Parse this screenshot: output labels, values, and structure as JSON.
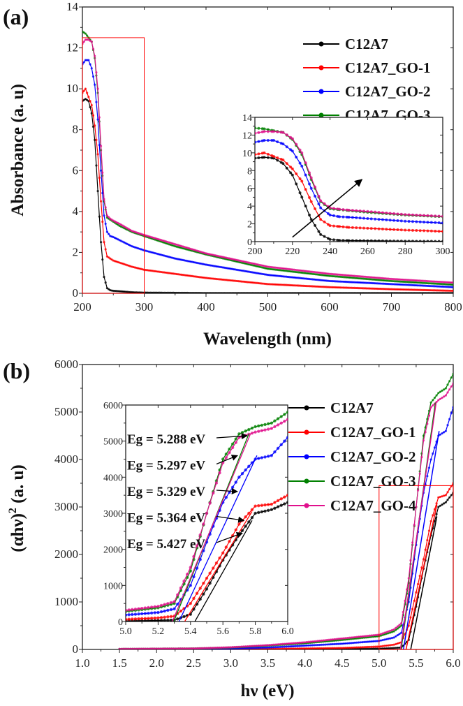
{
  "chart_data": [
    {
      "type": "line",
      "panel_label": "(a)",
      "title": "",
      "xlabel": "Wavelength (nm)",
      "ylabel": "Absorbance (a. u)",
      "xlim": [
        200,
        800
      ],
      "ylim": [
        0,
        14
      ],
      "xticks": [
        "200",
        "300",
        "400",
        "500",
        "600",
        "700",
        "800"
      ],
      "yticks": [
        "0",
        "2",
        "4",
        "6",
        "8",
        "10",
        "12",
        "14"
      ],
      "legend_position": "top-right",
      "x": [
        200,
        205,
        210,
        215,
        220,
        225,
        230,
        235,
        240,
        245,
        250,
        260,
        280,
        300,
        350,
        400,
        500,
        600,
        700,
        800
      ],
      "series": [
        {
          "name": "C12A7",
          "color": "#000000",
          "values": [
            9.4,
            9.5,
            9.4,
            8.8,
            7.5,
            5.0,
            2.5,
            0.8,
            0.25,
            0.15,
            0.12,
            0.1,
            0.05,
            0.03,
            0.02,
            0.01,
            0.01,
            0.01,
            0.01,
            0.01
          ]
        },
        {
          "name": "C12A7_GO-1",
          "color": "#ff0000",
          "values": [
            9.8,
            10.0,
            9.6,
            9.2,
            8.2,
            6.8,
            4.5,
            2.5,
            1.8,
            1.7,
            1.6,
            1.5,
            1.3,
            1.15,
            0.95,
            0.75,
            0.45,
            0.3,
            0.2,
            0.12
          ]
        },
        {
          "name": "C12A7_GO-2",
          "color": "#0000ff",
          "values": [
            11.2,
            11.4,
            11.4,
            11.0,
            10.2,
            8.5,
            6.0,
            3.8,
            3.0,
            2.8,
            2.75,
            2.6,
            2.3,
            2.1,
            1.7,
            1.4,
            0.9,
            0.6,
            0.45,
            0.3
          ]
        },
        {
          "name": "C12A7_GO-3",
          "color": "#008000",
          "values": [
            12.8,
            12.7,
            12.5,
            12.3,
            11.5,
            9.8,
            7.0,
            4.5,
            3.7,
            3.6,
            3.5,
            3.3,
            3.0,
            2.8,
            2.3,
            1.9,
            1.2,
            0.85,
            0.6,
            0.42
          ]
        },
        {
          "name": "C12A7_GO-4",
          "color": "#e0108c",
          "values": [
            12.2,
            12.4,
            12.4,
            12.3,
            11.6,
            10.0,
            7.2,
            4.6,
            3.8,
            3.65,
            3.55,
            3.4,
            3.05,
            2.85,
            2.4,
            1.95,
            1.3,
            0.95,
            0.7,
            0.52
          ]
        }
      ],
      "zoom_box": {
        "xrange": [
          200,
          300
        ],
        "yrange": [
          0,
          12.5
        ],
        "color": "#ff0000"
      },
      "inset": {
        "xlim": [
          200,
          300
        ],
        "ylim": [
          0,
          14
        ],
        "xticks": [
          "200",
          "220",
          "240",
          "260",
          "280",
          "300"
        ],
        "yticks": [
          "0",
          "2",
          "4",
          "6",
          "8",
          "10",
          "12",
          "14"
        ],
        "arrow": {
          "from": [
            220,
            0.5
          ],
          "to": [
            257,
            7
          ]
        }
      }
    },
    {
      "type": "line",
      "panel_label": "(b)",
      "title": "",
      "xlabel": "hν (eV)",
      "ylabel": "(αhν)² (a. u)",
      "ylabel_main": "(αhν)",
      "ylabel_sup": "2",
      "ylabel_tail": " (a. u)",
      "xlim": [
        1.0,
        6.0
      ],
      "ylim": [
        0,
        6000
      ],
      "xticks": [
        "1.0",
        "1.5",
        "2.0",
        "2.5",
        "3.0",
        "3.5",
        "4.0",
        "4.5",
        "5.0",
        "5.5",
        "6.0"
      ],
      "yticks": [
        "0",
        "1000",
        "2000",
        "3000",
        "4000",
        "5000",
        "6000"
      ],
      "legend_position": "top-right",
      "x": [
        1.5,
        2.5,
        3.0,
        3.5,
        4.0,
        4.5,
        5.0,
        5.2,
        5.3,
        5.4,
        5.5,
        5.6,
        5.7,
        5.8,
        5.9,
        6.0
      ],
      "series": [
        {
          "name": "C12A7",
          "color": "#000000",
          "values": [
            0,
            0,
            0,
            0,
            5,
            10,
            15,
            30,
            40,
            200,
            900,
            1700,
            2400,
            3000,
            3100,
            3300
          ],
          "eg": 5.427,
          "tangent_end": [
            5.78,
            2800
          ]
        },
        {
          "name": "C12A7_GO-1",
          "color": "#ff0000",
          "values": [
            0,
            2,
            5,
            10,
            20,
            30,
            60,
            100,
            150,
            500,
            1200,
            1900,
            2700,
            3200,
            3250,
            3500
          ],
          "eg": 5.364,
          "tangent_end": [
            5.78,
            3050
          ]
        },
        {
          "name": "C12A7_GO-2",
          "color": "#0000ff",
          "values": [
            5,
            10,
            20,
            40,
            80,
            120,
            180,
            250,
            350,
            1000,
            2200,
            3300,
            4000,
            4500,
            4600,
            5100
          ],
          "eg": 5.329,
          "tangent_end": [
            5.81,
            4600
          ]
        },
        {
          "name": "C12A7_GO-3",
          "color": "#008000",
          "values": [
            10,
            20,
            40,
            80,
            130,
            200,
            280,
            380,
            500,
            1400,
            3000,
            4500,
            5200,
            5400,
            5500,
            5800
          ],
          "eg": 5.297,
          "tangent_end": [
            5.76,
            5200
          ]
        },
        {
          "name": "C12A7_GO-4",
          "color": "#e0108c",
          "values": [
            10,
            20,
            45,
            90,
            150,
            230,
            310,
            420,
            550,
            1500,
            3000,
            4400,
            5100,
            5250,
            5350,
            5600
          ],
          "eg": 5.288,
          "tangent_end": [
            5.77,
            5200
          ]
        }
      ],
      "zoom_box": {
        "xrange": [
          5.0,
          6.0
        ],
        "yrange": [
          0,
          3450
        ],
        "color": "#ff0000"
      },
      "inset": {
        "xlim": [
          5.0,
          6.0
        ],
        "ylim": [
          0,
          6000
        ],
        "xticks": [
          "5.0",
          "5.2",
          "5.4",
          "5.6",
          "5.8",
          "6.0"
        ],
        "yticks": [
          "0",
          "1000",
          "2000",
          "3000",
          "4000",
          "5000",
          "6000"
        ]
      },
      "annotations": [
        {
          "text": "Eg = 5.288 eV",
          "points_to": [
            5.75,
            5150
          ]
        },
        {
          "text": "Eg = 5.297 eV",
          "points_to": [
            5.69,
            4600
          ]
        },
        {
          "text": "Eg = 5.329 eV",
          "points_to": [
            5.69,
            3600
          ]
        },
        {
          "text": "Eg = 5.364 eV",
          "points_to": [
            5.73,
            2800
          ]
        },
        {
          "text": "Eg = 5.427 eV",
          "points_to": [
            5.72,
            2450
          ]
        }
      ]
    }
  ]
}
